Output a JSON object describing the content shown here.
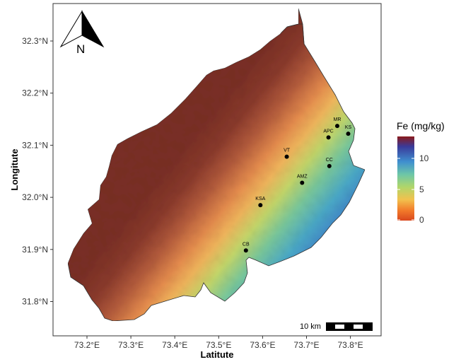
{
  "map": {
    "xlabel": "Latitute",
    "ylabel": "Longitute",
    "north_label": "N",
    "scale_label": "10 km",
    "x_ticks": [
      "73.2°E",
      "73.3°E",
      "73.4°E",
      "73.5°E",
      "73.6°E",
      "73.7°E",
      "73.8°E"
    ],
    "y_ticks": [
      "32.3°N",
      "32.2°N",
      "32.1°N",
      "32.0°N",
      "31.9°N",
      "31.8°N"
    ],
    "sites": [
      {
        "name": "MR",
        "lon": 73.77,
        "lat": 32.137
      },
      {
        "name": "KS",
        "lon": 73.795,
        "lat": 32.122
      },
      {
        "name": "APC",
        "lon": 73.75,
        "lat": 32.115
      },
      {
        "name": "VT",
        "lon": 73.655,
        "lat": 32.078
      },
      {
        "name": "CC",
        "lon": 73.752,
        "lat": 32.06
      },
      {
        "name": "AMZ",
        "lon": 73.69,
        "lat": 32.028
      },
      {
        "name": "KSA",
        "lon": 73.595,
        "lat": 31.985
      },
      {
        "name": "CB",
        "lon": 73.562,
        "lat": 31.898
      }
    ]
  },
  "legend": {
    "title": "Fe (mg/kg)",
    "ticks": [
      "10",
      "5",
      "0"
    ],
    "colors": [
      "#8b1a1a",
      "#3a3a9a",
      "#3f8fcf",
      "#6dc6a8",
      "#b0d66a",
      "#f2c14e",
      "#f27a2a",
      "#d9481e"
    ]
  }
}
